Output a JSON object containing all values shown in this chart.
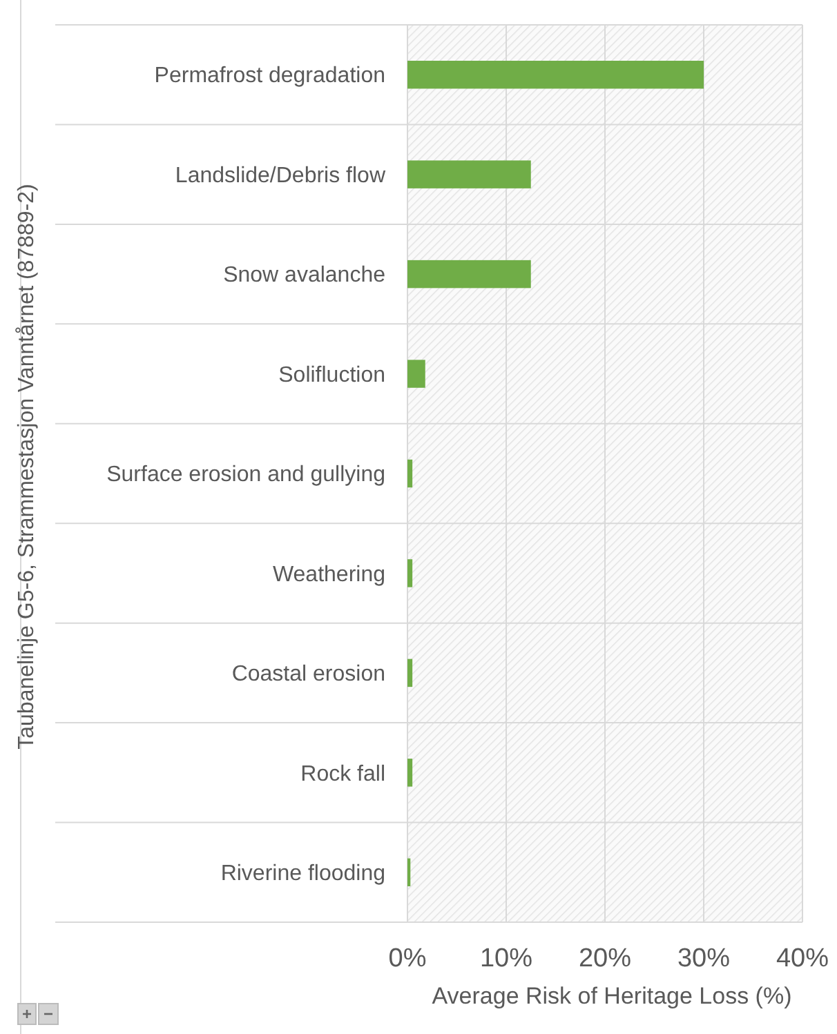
{
  "chart_data": {
    "type": "bar",
    "orientation": "horizontal",
    "categories": [
      "Permafrost degradation",
      "Landslide/Debris flow",
      "Snow avalanche",
      "Solifluction",
      "Surface erosion and gullying",
      "Weathering",
      "Coastal erosion",
      "Rock fall",
      "Riverine flooding"
    ],
    "values": [
      30,
      12.5,
      12.5,
      1.8,
      0.5,
      0.5,
      0.5,
      0.5,
      0.3
    ],
    "color": "#70ad47",
    "xlim": [
      0,
      40
    ],
    "xticks": [
      {
        "value": 0,
        "label": "0%"
      },
      {
        "value": 10,
        "label": "10%"
      },
      {
        "value": 20,
        "label": "20%"
      },
      {
        "value": 30,
        "label": "30%"
      },
      {
        "value": 40,
        "label": "40%"
      }
    ],
    "xlabel": "Average Risk of Heritage Loss (%)",
    "ylabel": "Taubanelinje G5-6, Strammestasjon Vanntårnet (87889-2)",
    "grid": "x"
  }
}
